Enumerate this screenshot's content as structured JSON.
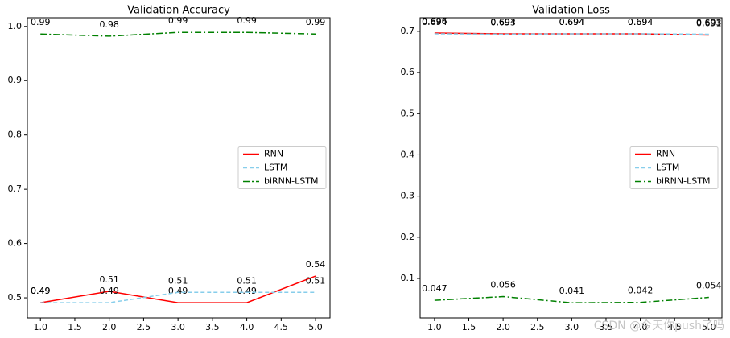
{
  "chart_data": [
    {
      "type": "line",
      "title": "Validation Accuracy",
      "x": [
        1,
        2,
        3,
        4,
        5
      ],
      "series": [
        {
          "name": "RNN",
          "color": "#ff0000",
          "linestyle": "solid",
          "values": [
            0.491,
            0.512,
            0.491,
            0.491,
            0.54
          ],
          "value_labels": [
            "0.49",
            "0.51",
            "0.49",
            "0.49",
            "0.54"
          ]
        },
        {
          "name": "LSTM",
          "color": "#87ceeb",
          "linestyle": "dashed",
          "values": [
            0.491,
            0.491,
            0.51,
            0.51,
            0.51
          ],
          "value_labels": [
            "0.49",
            "0.49",
            "0.51",
            "0.51",
            "0.51"
          ]
        },
        {
          "name": "biRNN-LSTM",
          "color": "#008000",
          "linestyle": "dashdot",
          "values": [
            0.986,
            0.982,
            0.989,
            0.989,
            0.986
          ],
          "value_labels": [
            "0.99",
            "0.98",
            "0.99",
            "0.99",
            "0.99"
          ]
        }
      ],
      "xlim": [
        0.81,
        5.21
      ],
      "xticks": [
        {
          "value": 1,
          "label": "1.0"
        },
        1.5,
        {
          "value": 2,
          "label": "2.0"
        },
        2.5,
        {
          "value": 3,
          "label": "3.0"
        },
        3.5,
        {
          "value": 4,
          "label": "4.0"
        },
        4.5,
        {
          "value": 5,
          "label": "5.0"
        }
      ],
      "ylim": [
        0.463,
        1.016
      ],
      "yticks": [
        0.5,
        0.6,
        0.7,
        0.8,
        0.9,
        {
          "value": 1,
          "label": "1.0"
        }
      ],
      "legend": "center right"
    },
    {
      "type": "line",
      "title": "Validation Loss",
      "x": [
        1,
        2,
        3,
        4,
        5
      ],
      "series": [
        {
          "name": "RNN",
          "color": "#ff0000",
          "linestyle": "solid",
          "values": [
            0.696,
            0.694,
            0.694,
            0.694,
            0.691
          ]
        },
        {
          "name": "LSTM",
          "color": "#87ceeb",
          "linestyle": "dashed",
          "values": [
            0.694,
            0.693,
            0.694,
            0.694,
            0.693
          ]
        },
        {
          "name": "biRNN-LSTM",
          "color": "#008000",
          "linestyle": "dashdot",
          "values": [
            0.047,
            0.056,
            0.041,
            0.042,
            0.054
          ]
        }
      ],
      "xlim": [
        0.79,
        5.19
      ],
      "xticks": [
        {
          "value": 1,
          "label": "1.0"
        },
        1.5,
        {
          "value": 2,
          "label": "2.0"
        },
        2.5,
        {
          "value": 3,
          "label": "3.0"
        },
        3.5,
        {
          "value": 4,
          "label": "4.0"
        },
        4.5,
        {
          "value": 5,
          "label": "5.0"
        }
      ],
      "ylim": [
        0.0043,
        0.733
      ],
      "yticks": [
        0.1,
        0.2,
        0.3,
        0.4,
        0.5,
        0.6,
        0.7
      ],
      "legend": "center right"
    }
  ],
  "watermark": "CSDN @今天你push了吗"
}
